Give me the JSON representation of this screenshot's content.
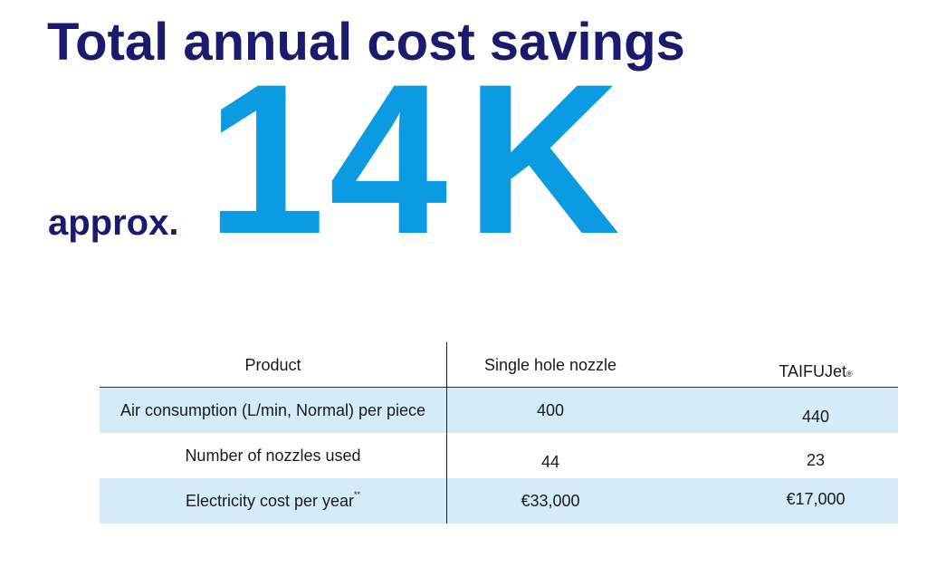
{
  "headline": {
    "title": "Total annual cost savings",
    "prefix": "approx.",
    "amount_number": "14",
    "amount_unit": "K"
  },
  "table": {
    "headers": {
      "product": "Product",
      "single": "Single hole nozzle",
      "taifu": "TAIFUJet",
      "taifu_mark": "®"
    },
    "rows": [
      {
        "label": "Air consumption (L/min, Normal) per piece",
        "single": "400",
        "taifu": "440"
      },
      {
        "label": "Number of nozzles used",
        "single": "44",
        "taifu": "23"
      },
      {
        "label": "Electricity cost per year",
        "label_note": "**",
        "single": "€33,000",
        "taifu": "€17,000"
      }
    ]
  },
  "colors": {
    "title": "#1a1a6e",
    "amount": "#0a9be3",
    "row_shade": "#d3ecf8"
  }
}
